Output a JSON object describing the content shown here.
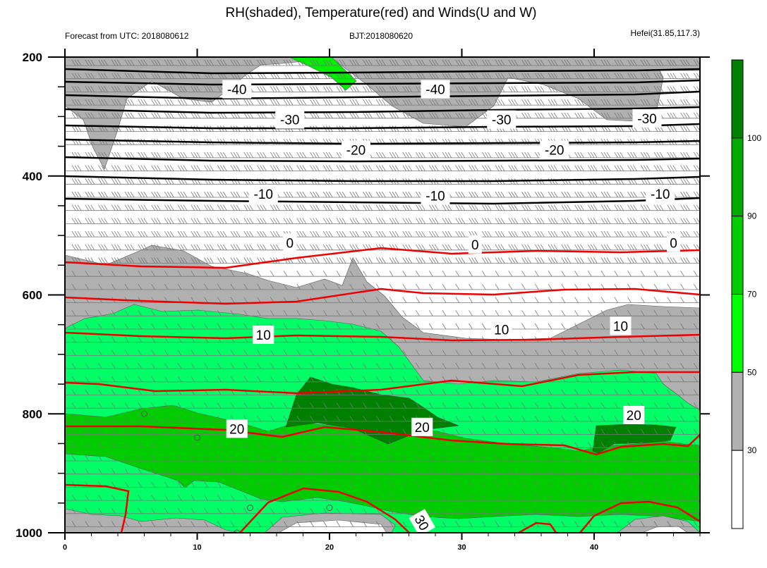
{
  "chart_data": {
    "type": "contour",
    "title": "RH(shaded), Temperature(red) and Winds(U and W)",
    "subtitle_left": "Forecast from UTC: 2018080612",
    "subtitle_center": "BJT:2018080620",
    "subtitle_right": "Hefei(31.85,117.3)",
    "x_ticks": [
      "0",
      "10",
      "20",
      "30",
      "40"
    ],
    "x_tick_values": [
      0,
      10,
      20,
      30,
      40
    ],
    "xlim": [
      0,
      48
    ],
    "y_ticks": [
      "200",
      "400",
      "600",
      "800",
      "1000"
    ],
    "y_tick_values": [
      200,
      400,
      600,
      800,
      1000
    ],
    "ylim": [
      200,
      1000
    ],
    "y_axis_inverted": true,
    "colorbar": {
      "levels": [
        "30",
        "50",
        "70",
        "90",
        "100"
      ],
      "level_values": [
        30,
        50,
        70,
        90,
        100
      ],
      "colors": [
        "#ffffff",
        "#b0b0b0",
        "#00ff00",
        "#00cc00",
        "#00aa00",
        "#008000"
      ]
    },
    "black_contour_labels": [
      {
        "text": "-40",
        "x": 13,
        "p": 254
      },
      {
        "text": "-40",
        "x": 28,
        "p": 254
      },
      {
        "text": "-30",
        "x": 17,
        "p": 305
      },
      {
        "text": "-30",
        "x": 33,
        "p": 305
      },
      {
        "text": "-30",
        "x": 44,
        "p": 303
      },
      {
        "text": "-20",
        "x": 22,
        "p": 356
      },
      {
        "text": "-20",
        "x": 37,
        "p": 356
      },
      {
        "text": "-10",
        "x": 15,
        "p": 430
      },
      {
        "text": "-10",
        "x": 28,
        "p": 433
      },
      {
        "text": "-10",
        "x": 45,
        "p": 430
      },
      {
        "text": "0",
        "x": 17,
        "p": 512
      },
      {
        "text": "0",
        "x": 31,
        "p": 515
      },
      {
        "text": "0",
        "x": 46,
        "p": 512
      }
    ],
    "red_contour_labels": [
      {
        "text": "10",
        "x": 15,
        "p": 667
      },
      {
        "text": "10",
        "x": 33,
        "p": 658
      },
      {
        "text": "10",
        "x": 42,
        "p": 652
      },
      {
        "text": "20",
        "x": 13,
        "p": 825
      },
      {
        "text": "20",
        "x": 27,
        "p": 822
      },
      {
        "text": "20",
        "x": 43,
        "p": 802
      },
      {
        "text": "30",
        "x": 27,
        "p": 983
      }
    ]
  }
}
